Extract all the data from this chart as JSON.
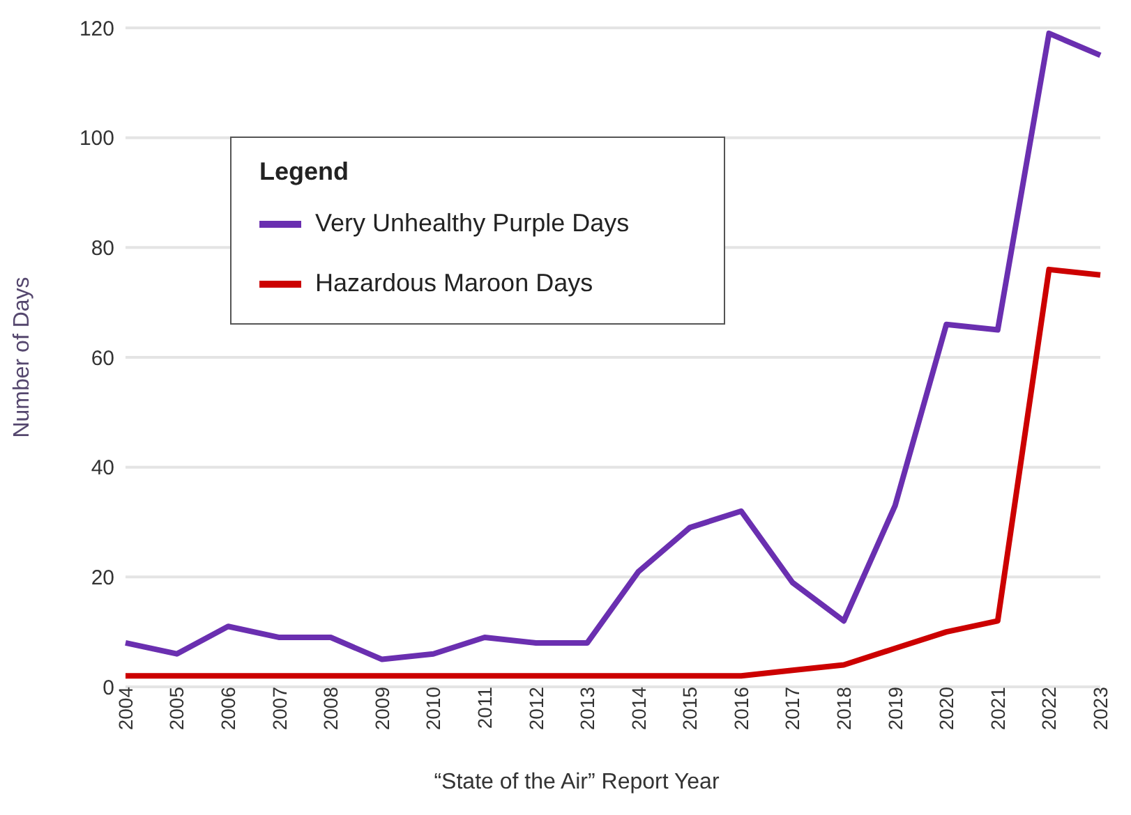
{
  "chart_data": {
    "type": "line",
    "xlabel": "“State of the Air” Report Year",
    "ylabel": "Number of Days",
    "legend_title": "Legend",
    "categories": [
      "2004",
      "2005",
      "2006",
      "2007",
      "2008",
      "2009",
      "2010",
      "2011",
      "2012",
      "2013",
      "2014",
      "2015",
      "2016",
      "2017",
      "2018",
      "2019",
      "2020",
      "2021",
      "2022",
      "2023"
    ],
    "series": [
      {
        "name": "Very Unhealthy Purple Days",
        "color": "#6a2fb0",
        "values": [
          8,
          6,
          11,
          9,
          9,
          5,
          6,
          9,
          8,
          8,
          21,
          29,
          32,
          19,
          12,
          33,
          66,
          65,
          119,
          115
        ]
      },
      {
        "name": "Hazardous Maroon Days",
        "color": "#cc0000",
        "values": [
          2,
          2,
          2,
          2,
          2,
          2,
          2,
          2,
          2,
          2,
          2,
          2,
          2,
          3,
          4,
          7,
          10,
          12,
          76,
          75
        ]
      }
    ],
    "ylim": [
      0,
      120
    ],
    "yticks": [
      0,
      20,
      40,
      60,
      80,
      100,
      120
    ],
    "grid": "y",
    "legend": "top left",
    "marker": "none",
    "line_style": "solid"
  }
}
